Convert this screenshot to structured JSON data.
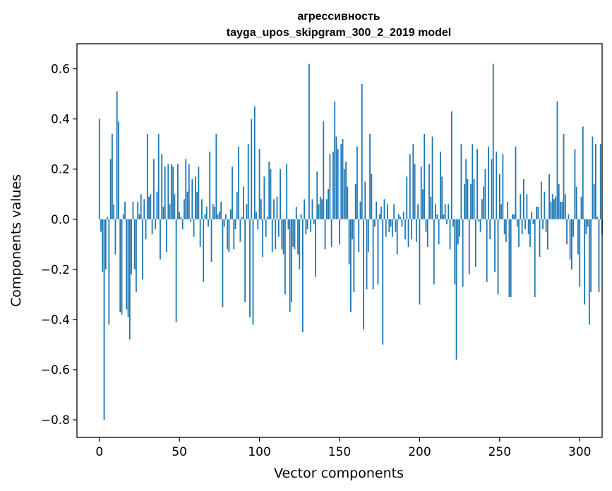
{
  "chart_data": {
    "type": "bar",
    "title": "агрессивность",
    "subtitle": "tayga_upos_skipgram_300_2_2019 model",
    "xlabel": "Vector components",
    "ylabel": "Components values",
    "xlim": [
      -14,
      314
    ],
    "ylim": [
      -0.87,
      0.7
    ],
    "xticks": [
      0,
      50,
      100,
      150,
      200,
      250,
      300
    ],
    "xtick_labels": [
      "0",
      "50",
      "100",
      "150",
      "200",
      "250",
      "300"
    ],
    "yticks": [
      -0.8,
      -0.6,
      -0.4,
      -0.2,
      0.0,
      0.2,
      0.4,
      0.6
    ],
    "ytick_labels": [
      "−0.8",
      "−0.6",
      "−0.4",
      "−0.2",
      "0.0",
      "0.2",
      "0.4",
      "0.6"
    ],
    "grid": false,
    "bar_color": "#1f77b4",
    "x_start": 0,
    "values": [
      0.4,
      -0.05,
      -0.21,
      -0.8,
      -0.2,
      0.01,
      -0.42,
      0.24,
      0.34,
      0.06,
      -0.14,
      0.51,
      0.39,
      -0.37,
      -0.38,
      0.02,
      0.07,
      -0.36,
      -0.39,
      -0.48,
      -0.22,
      0.07,
      -0.2,
      -0.29,
      0.07,
      0.02,
      0.1,
      -0.24,
      0.08,
      -0.08,
      0.34,
      0.09,
      0.1,
      -0.06,
      0.24,
      -0.04,
      0.11,
      0.34,
      -0.16,
      0.26,
      0.05,
      0.21,
      -0.13,
      0.22,
      0.06,
      0.22,
      0.21,
      0.1,
      -0.41,
      0.22,
      0.03,
      0.01,
      -0.04,
      0.08,
      0.24,
      0.11,
      0.22,
      -0.01,
      0.16,
      -0.07,
      0.17,
      0.11,
      0.21,
      -0.11,
      0.08,
      -0.25,
      0.02,
      0.05,
      -0.03,
      0.27,
      -0.17,
      0.06,
      0.05,
      0.34,
      0.02,
      0.03,
      0.07,
      -0.35,
      -0.03,
      0.02,
      -0.12,
      -0.13,
      0.04,
      0.21,
      -0.12,
      -0.04,
      0.11,
      0.29,
      -0.09,
      0.01,
      0.13,
      -0.33,
      0.06,
      0.3,
      -0.39,
      0.4,
      -0.42,
      0.45,
      0.03,
      -0.04,
      0.28,
      0.08,
      -0.15,
      0.17,
      -0.07,
      0.01,
      0.23,
      0.2,
      -0.13,
      0.08,
      -0.12,
      0.09,
      -0.07,
      0.2,
      -0.12,
      -0.14,
      -0.3,
      0.22,
      -0.04,
      -0.37,
      -0.33,
      -0.11,
      -0.12,
      0.05,
      -0.14,
      -0.2,
      0.02,
      -0.45,
      0.08,
      -0.06,
      -0.04,
      0.62,
      -0.05,
      0.08,
      -0.02,
      -0.23,
      0.19,
      0.06,
      0.09,
      0.08,
      0.39,
      -0.12,
      0.08,
      0.12,
      0.26,
      -0.11,
      0.27,
      0.47,
      0.33,
      0.28,
      -0.1,
      0.3,
      0.32,
      0.2,
      0.23,
      0.13,
      -0.18,
      -0.37,
      -0.08,
      -0.29,
      0.14,
      0.29,
      -0.13,
      0.07,
      0.54,
      -0.44,
      0.15,
      -0.28,
      -0.13,
      0.34,
      0.18,
      -0.28,
      -0.03,
      0.07,
      -0.26,
      0.02,
      0.05,
      -0.5,
      0.08,
      -0.07,
      0.06,
      -0.05,
      -0.03,
      -0.07,
      0.06,
      -0.05,
      -0.14,
      0.02,
      0.01,
      -0.03,
      0.03,
      -0.08,
      0.17,
      -0.11,
      0.26,
      -0.08,
      0.3,
      0.22,
      -0.09,
      0.06,
      -0.34,
      0.21,
      0.12,
      0.34,
      -0.05,
      -0.11,
      0.22,
      0.09,
      0.33,
      -0.26,
      0.06,
      0.02,
      -0.1,
      0.27,
      0.17,
      0.02,
      0.06,
      -0.02,
      0.06,
      -0.12,
      0.43,
      -0.03,
      -0.26,
      -0.56,
      -0.1,
      -0.07,
      0.3,
      -0.27,
      0.14,
      0.24,
      0.16,
      -0.22,
      0.14,
      0.3,
      0.16,
      -0.19,
      0.28,
      -0.01,
      -0.05,
      0.08,
      0.13,
      0.2,
      -0.25,
      0.29,
      -0.08,
      0.24,
      0.62,
      -0.21,
      0.27,
      -0.3,
      0.18,
      0.06,
      0.26,
      -0.06,
      -0.09,
      0.07,
      -0.31,
      -0.31,
      0.02,
      0.02,
      0.29,
      -0.03,
      -0.11,
      0.1,
      -0.06,
      0.16,
      -0.04,
      0.1,
      -0.06,
      -0.11,
      0.03,
      -0.02,
      -0.31,
      0.05,
      0.05,
      -0.15,
      0.15,
      -0.04,
      0.11,
      -0.05,
      -0.12,
      0.18,
      0.07,
      0.1,
      0.08,
      0.09,
      0.47,
      0.14,
      0.07,
      0.07,
      0.34,
      0.1,
      -0.1,
      0.02,
      -0.16,
      -0.2,
      -0.07,
      0.28,
      0.13,
      -0.14,
      -0.27,
      0.09,
      0.37,
      -0.34,
      -0.06,
      -0.03,
      -0.42,
      -0.29,
      0.33,
      0.14,
      0.3,
      0.01,
      -0.29,
      0.3,
      -0.06
    ]
  }
}
